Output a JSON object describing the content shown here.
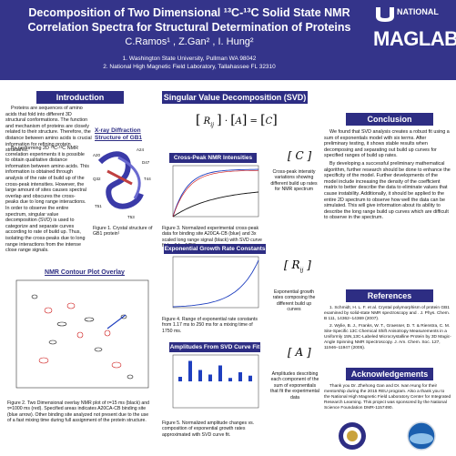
{
  "header": {
    "title_line1": "Decomposition of Two Dimensional ¹³C-¹³C Solid State NMR",
    "title_line2": "Correlation Spectra for Structural Determination of Proteins",
    "authors": "C.Ramos¹ , Z.Gan² , I. Hung²",
    "affil1": "1.   Washington State University, Pullman WA 98042",
    "affil2": "2.  National High Magnetic Field Laboratory, Tallahassee FL 32310",
    "logo_top": "NATIONAL",
    "logo_main": "MAGLAB"
  },
  "intro": {
    "heading": "Introduction",
    "p1": "Proteins are  sequences of amino acids that fold into different 3D structural conformations. The function and mechanism of proteins are closely related to their structure. Therefore, the distance between amino acids is crucial information for refining protein structures.",
    "xray_title": "X-ray Diffraction Structure of GB1",
    "p2": "By performing 2D ¹³C-¹³C NMR correlation experiments it is possible to obtain qualitative distance information between amino acids. This information is obtained through analysis of the rate of build up of the cross-peak intensities. However, the large amount of sites causes spectral overlap and  obscures the cross- peaks due to long range interactions. In order to observe the entire spectrum, singular value decomposition (SVD) is used to categorize and separate curves according to rate of build up. Thus, isolating the cross-peaks due to long range interactions from the intense close range signals.",
    "fig1_caption": "Figure 1. Crystal structure of GB1 protein¹",
    "labels": [
      "A20",
      "Q32",
      "A24",
      "D47",
      "T44",
      "T51",
      "T53"
    ]
  },
  "contour": {
    "heading": "NMR Contour Plot Overlay",
    "caption": "Figure 2. Two Dimensional overlay NMR plot of τ=15 ms (black) and τ=1000 ms (red). Specified areas indicates A20CA-CB binding site (blue arrow). Other binding site analyzed not present due to the use of a fast mixing time during full assignment of the protein structure."
  },
  "svd": {
    "heading": "Singular Value Decomposition (SVD)",
    "matrix_r": "R",
    "matrix_r_sub": "ij",
    "matrix_a": "A",
    "matrix_c": "C",
    "dot": "·",
    "eq": "=",
    "cross_title": "Cross-Peak NMR Intensities",
    "cross_caption": "Figure 3. Normalized experimental cross-peak data for binding site A20CA-CB (blue) and 3x scaled long range signal (black) with SVD curve fit (red) for 1750 ms.",
    "c_desc": "Cross-peak intensity variations showing different build up rates for NMR spectrum",
    "exp_title": "Exponential Growth Rate Constants",
    "exp_caption": "Figure 4. Range of exponential rate constants from 1.17 ms to 250 ms for a mixing time of  1750 ms.",
    "r_desc": "Exponential growth rates composing the different build up curves",
    "amp_title": "Amplitudes From SVD Curve Fit",
    "amp_caption": "Figure 5. Normalized amplitude changes vs. composition of exponential growth rates approximated with SVD curve fit.",
    "a_desc": "Amplitudes describing each component of the sum of exponentials that fit the experimental data"
  },
  "conclusion": {
    "heading": "Conclusion",
    "p1": "We found that SVD analysis creates a robust fit using a sum of exponentials model with six terms. After preliminary testing, it shows stable results when decomposing and separating out build up curves for specified ranges of build up rates.",
    "p2": "By developing a successful  preliminary mathematical algorithm, further research should be done to enhance the specificity of the model. Further developments of the model include increasing the density of the coefficient matrix to better describe the data to eliminate values that cause instability. Additionally, it should be applied to the entire 2D spectrum to observe how well the data can be simulated. This will give information about its ability to describe the long range build up curves which are difficult to observe in the spectrum."
  },
  "references": {
    "heading": "References",
    "r1": "1. Schmidt, H. L. F. et al. Crystal polymorphism of protein GB1 examined by solid-state NMR spectroscopy and . J. Phys. Chem. B 111, 14362–14369 (2007).",
    "r2": "2. Wylie, B. J., Franks, W. T., Graesser, D. T. & Rienstra, C. M. Site-Specific 13C Chemical Shift Anisotropy Measurements in a Uniformly 15N,13C-Labeled Microcrystalline Protein by 3D Magic-Angle Spinning NMR Spectroscopy. J. Am. Chem. Soc. 127, 11946–11947 (2005)."
  },
  "ack": {
    "heading": "Acknowledgements",
    "text": "Thank you Dr. Zhehong Gan and Dr. Ivan Hung for their mentorship during the 2015 REU program. Also a thank you to the National High Magnetic Field Laboratory Center for Integrated Research Learning. This project was sponsored by the National Science Foundation DMR-1157490."
  },
  "colors": {
    "navy": "#2d2d83",
    "header": "#34348a",
    "black_contour": "#111111",
    "red_contour": "#cc1111",
    "blue_curve": "#1f3fbf",
    "red_curve": "#d01010"
  }
}
